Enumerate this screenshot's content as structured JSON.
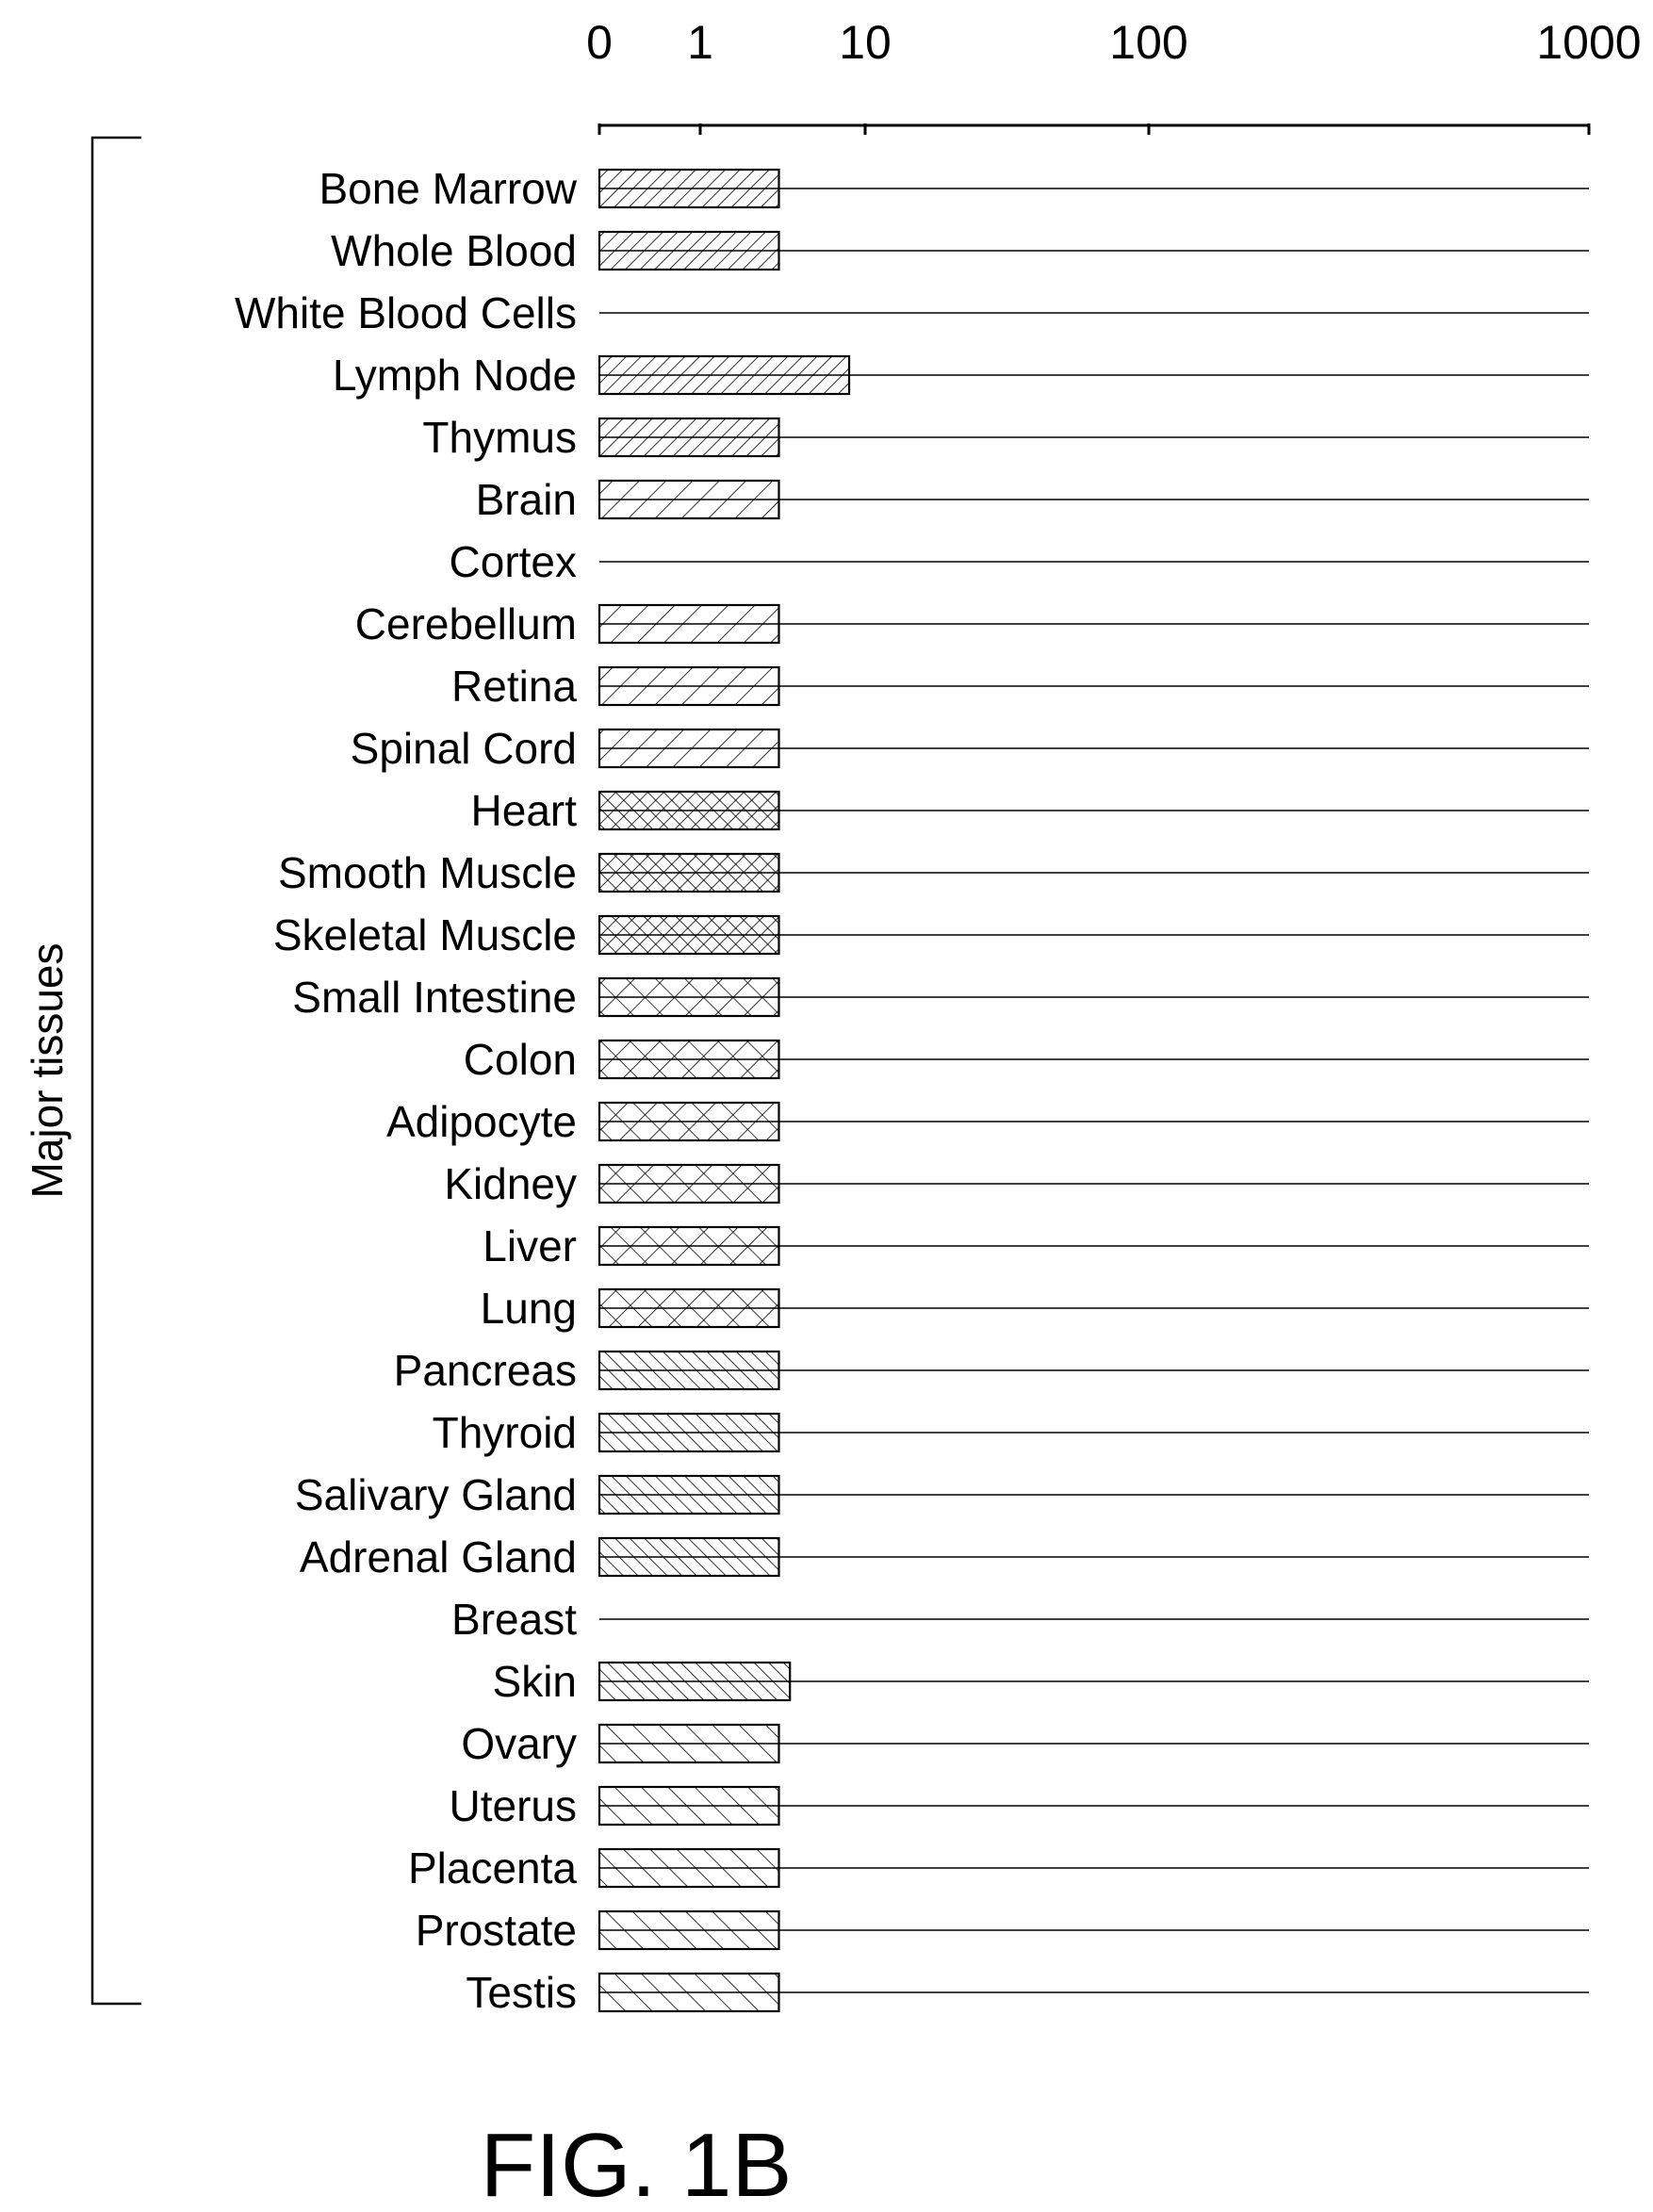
{
  "chart_data": {
    "type": "bar",
    "orientation": "horizontal",
    "x_scale": "log",
    "x_ticks": [
      "0",
      "1",
      "10",
      "100",
      "1000"
    ],
    "group_label": "Major tissues",
    "figure_label": "FIG. 1B",
    "grid": false,
    "categories": [
      "Bone Marrow",
      "Whole Blood",
      "White Blood Cells",
      "Lymph Node",
      "Thymus",
      "Brain",
      "Cortex",
      "Cerebellum",
      "Retina",
      "Spinal Cord",
      "Heart",
      "Smooth Muscle",
      "Skeletal Muscle",
      "Small Intestine",
      "Colon",
      "Adipocyte",
      "Kidney",
      "Liver",
      "Lung",
      "Pancreas",
      "Thyroid",
      "Salivary Gland",
      "Adrenal Gland",
      "Breast",
      "Skin",
      "Ovary",
      "Uterus",
      "Placenta",
      "Prostate",
      "Testis"
    ],
    "values": [
      3,
      3,
      0,
      8,
      3,
      3,
      0,
      3,
      3,
      3,
      3,
      3,
      3,
      3,
      3,
      3,
      3,
      3,
      3,
      3,
      3,
      3,
      3,
      0,
      3.5,
      3,
      3,
      3,
      3,
      3
    ],
    "patterns": [
      "dense-back",
      "dense-back",
      "none",
      "dense-back",
      "dense-back",
      "sparse-back",
      "none",
      "sparse-back",
      "sparse-back",
      "sparse-back",
      "dense-cross",
      "dense-cross",
      "dense-cross",
      "sparse-cross",
      "sparse-cross",
      "sparse-cross",
      "sparse-cross",
      "sparse-cross",
      "sparse-cross",
      "dense-fwd",
      "dense-fwd",
      "dense-fwd",
      "dense-fwd",
      "none",
      "dense-fwd",
      "sparse-fwd",
      "sparse-fwd",
      "sparse-fwd",
      "sparse-fwd",
      "sparse-fwd"
    ],
    "colors": {
      "ink": "#000000",
      "background": "#ffffff"
    }
  }
}
